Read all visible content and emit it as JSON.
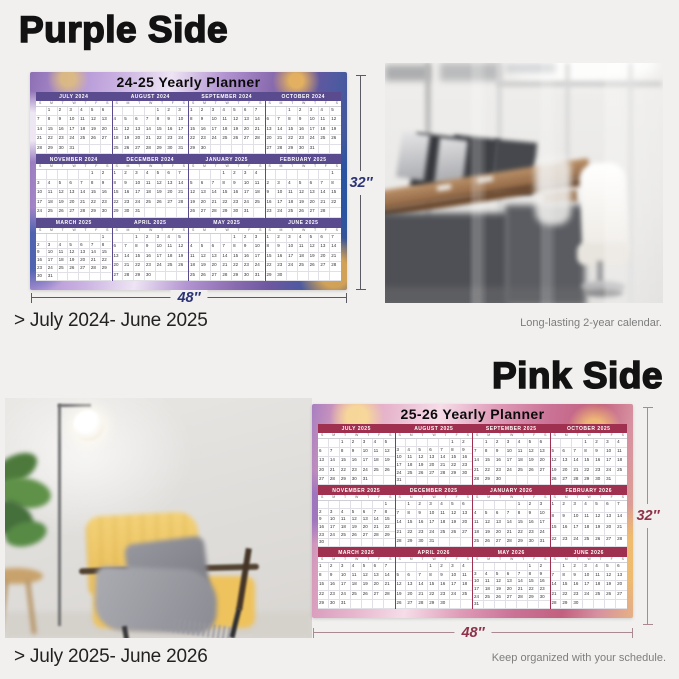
{
  "weekdays": [
    "S",
    "M",
    "T",
    "W",
    "T",
    "F",
    "S"
  ],
  "purple": {
    "heading": "Purple Side",
    "subtitle_chevron": ">",
    "subtitle": "July 2024- June 2025",
    "note": "Long-lasting 2-year calendar.",
    "calendar": {
      "title": "24-25 Yearly Planner",
      "height_label": "32″",
      "width_label": "48″",
      "accent": "#5a4a8e",
      "dim_text_color": "#2c3377",
      "months": [
        {
          "label": "JULY 2024",
          "year": 2024,
          "month": 6
        },
        {
          "label": "AUGUST 2024",
          "year": 2024,
          "month": 7
        },
        {
          "label": "SEPTEMBER 2024",
          "year": 2024,
          "month": 8
        },
        {
          "label": "OCTOBER 2024",
          "year": 2024,
          "month": 9
        },
        {
          "label": "NOVEMBER 2024",
          "year": 2024,
          "month": 10
        },
        {
          "label": "DECEMBER 2024",
          "year": 2024,
          "month": 11
        },
        {
          "label": "JANUARY 2025",
          "year": 2025,
          "month": 0
        },
        {
          "label": "FEBRUARY 2025",
          "year": 2025,
          "month": 1
        },
        {
          "label": "MARCH 2025",
          "year": 2025,
          "month": 2
        },
        {
          "label": "APRIL 2025",
          "year": 2025,
          "month": 3
        },
        {
          "label": "MAY 2025",
          "year": 2025,
          "month": 4
        },
        {
          "label": "JUNE 2025",
          "year": 2025,
          "month": 5
        }
      ]
    }
  },
  "pink": {
    "heading": "Pink Side",
    "subtitle_chevron": ">",
    "subtitle": "July 2025- June 2026",
    "note": "Keep organized with your schedule.",
    "calendar": {
      "title": "25-26 Yearly Planner",
      "height_label": "32″",
      "width_label": "48″",
      "accent": "#a0304f",
      "dim_text_color": "#8f3249",
      "months": [
        {
          "label": "JULY 2025",
          "year": 2025,
          "month": 6
        },
        {
          "label": "AUGUST 2025",
          "year": 2025,
          "month": 7
        },
        {
          "label": "SEPTEMBER 2025",
          "year": 2025,
          "month": 8
        },
        {
          "label": "OCTOBER 2025",
          "year": 2025,
          "month": 9
        },
        {
          "label": "NOVEMBER 2025",
          "year": 2025,
          "month": 10
        },
        {
          "label": "DECEMBER 2025",
          "year": 2025,
          "month": 11
        },
        {
          "label": "JANUARY 2026",
          "year": 2026,
          "month": 0
        },
        {
          "label": "FEBRUARY 2026",
          "year": 2026,
          "month": 1
        },
        {
          "label": "MARCH 2026",
          "year": 2026,
          "month": 2
        },
        {
          "label": "APRIL 2026",
          "year": 2026,
          "month": 3
        },
        {
          "label": "MAY 2026",
          "year": 2026,
          "month": 4
        },
        {
          "label": "JUNE 2026",
          "year": 2026,
          "month": 5
        }
      ]
    }
  }
}
